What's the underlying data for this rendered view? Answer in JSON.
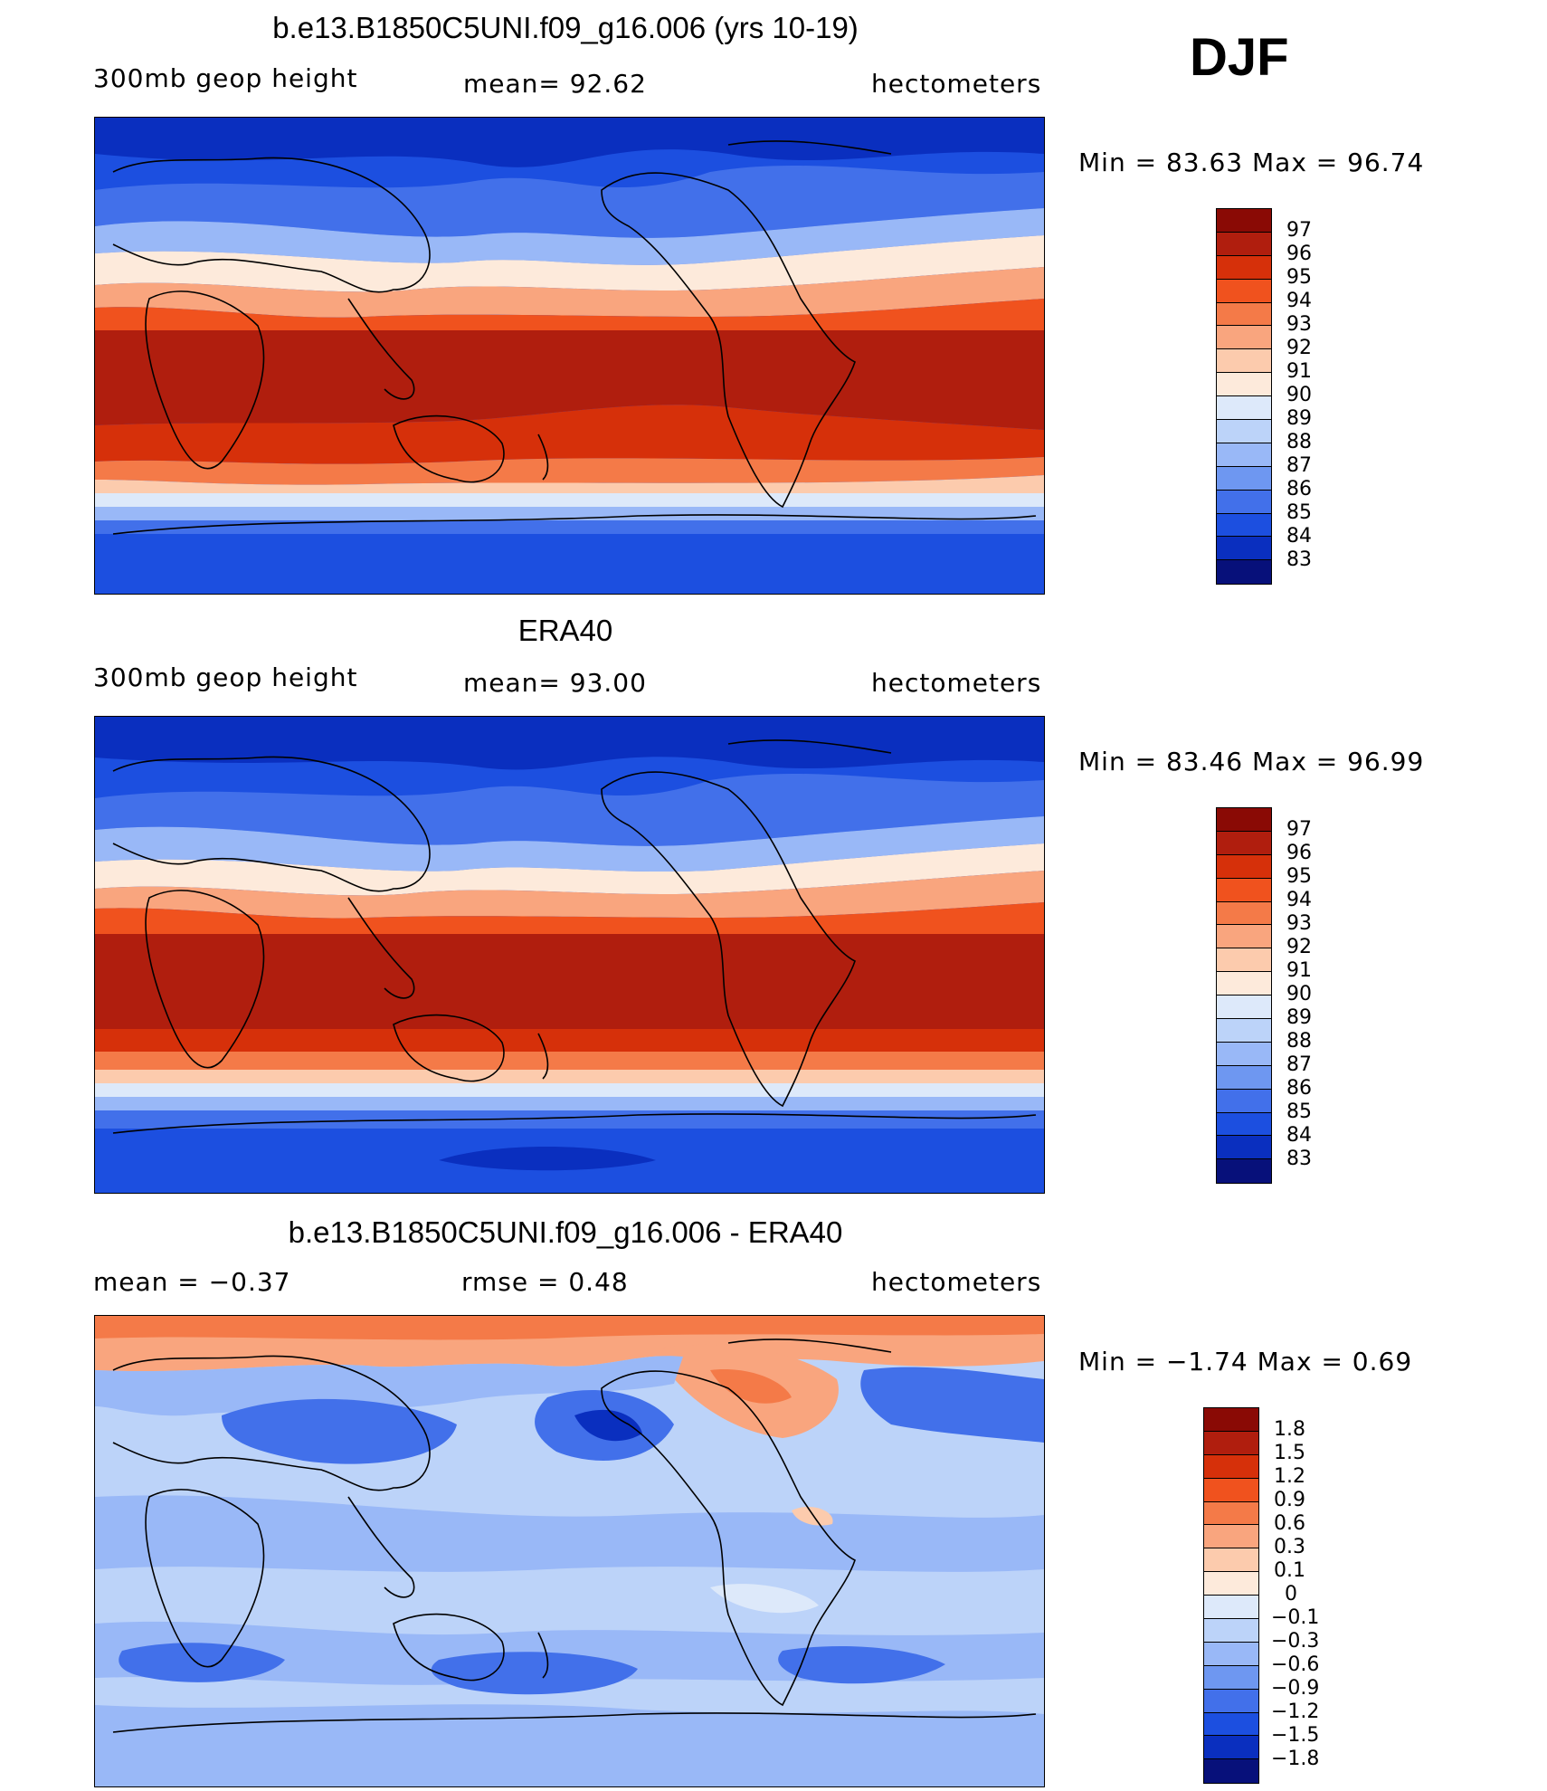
{
  "season": "DJF",
  "panels": [
    {
      "title": "b.e13.B1850C5UNI.f09_g16.006 (yrs 10-19)",
      "left_label": "300mb geop height",
      "mid_label": "mean=  92.62",
      "right_label": "hectometers",
      "minmax": "Min =   83.63 Max =   96.74",
      "colorbar_labels": [
        "97",
        "96",
        "95",
        "94",
        "93",
        "92",
        "91",
        "90",
        "89",
        "88",
        "87",
        "86",
        "85",
        "84",
        "83"
      ]
    },
    {
      "title": "ERA40",
      "left_label": "300mb geop height",
      "mid_label": "mean=  93.00",
      "right_label": "hectometers",
      "minmax": "Min =   83.46 Max =   96.99",
      "colorbar_labels": [
        "97",
        "96",
        "95",
        "94",
        "93",
        "92",
        "91",
        "90",
        "89",
        "88",
        "87",
        "86",
        "85",
        "84",
        "83"
      ]
    },
    {
      "title": "b.e13.B1850C5UNI.f09_g16.006 - ERA40",
      "left_label": "mean =   −0.37",
      "mid_label": "rmse =    0.48",
      "right_label": "hectometers",
      "minmax": "Min =   −1.74 Max =     0.69",
      "colorbar_labels": [
        "1.8",
        "1.5",
        "1.2",
        "0.9",
        "0.6",
        "0.3",
        "0.1",
        "0",
        "−0.1",
        "−0.3",
        "−0.6",
        "−0.9",
        "−1.2",
        "−1.5",
        "−1.8"
      ]
    }
  ],
  "colors": {
    "abs_scale": [
      "#8a0a05",
      "#b01e0e",
      "#d6300a",
      "#f0521e",
      "#f47a48",
      "#f9a57e",
      "#fccbad",
      "#fdeadb",
      "#dde9fa",
      "#bcd3f9",
      "#99b8f7",
      "#6e97f1",
      "#4270ea",
      "#1c4fe0",
      "#0a2fbf",
      "#07107a"
    ],
    "diff_scale": [
      "#8a0a05",
      "#b01e0e",
      "#d6300a",
      "#f0521e",
      "#f47a48",
      "#f9a57e",
      "#fccbad",
      "#fdeadb",
      "#dde9fa",
      "#bcd3f9",
      "#99b8f7",
      "#6e97f1",
      "#4270ea",
      "#1c4fe0",
      "#0a2fbf",
      "#07107a"
    ]
  }
}
